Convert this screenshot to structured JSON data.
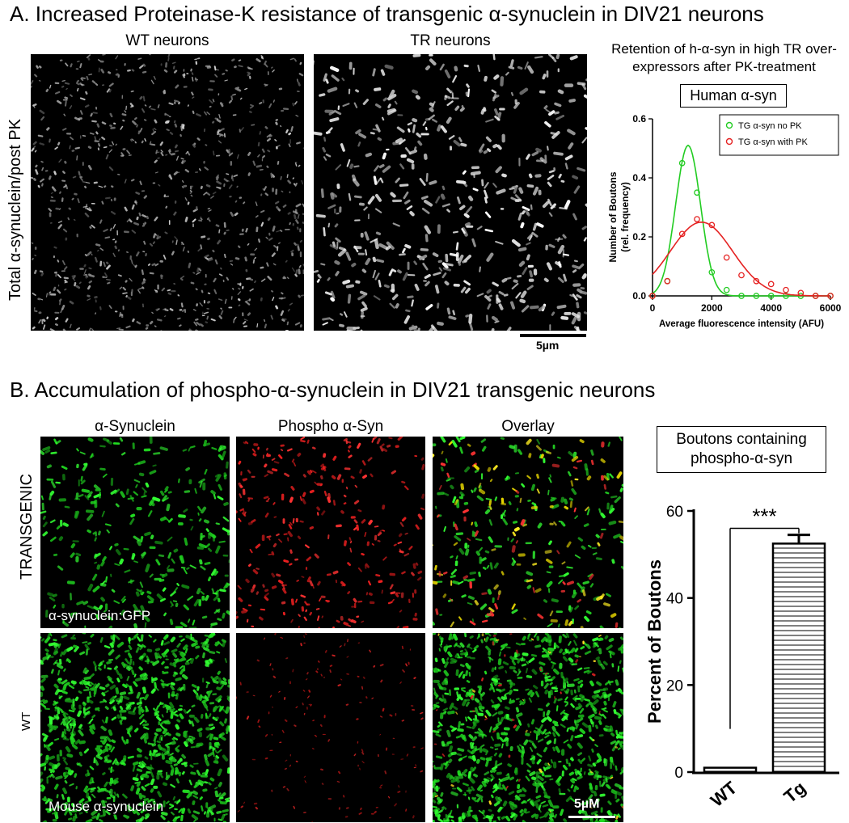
{
  "figure": {
    "section_a": {
      "title": "A. Increased Proteinase-K resistance of transgenic α-synuclein in DIV21 neurons",
      "panel_labels": [
        "WT neurons",
        "TR neurons"
      ],
      "row_label": "Total α-synuclein/post PK",
      "scale_bar": "5µm"
    },
    "section_b": {
      "title": "B. Accumulation of phospho-α-synuclein in DIV21 transgenic neurons",
      "column_labels": [
        "α-Synuclein",
        "Phospho α-Syn",
        "Overlay"
      ],
      "row_labels": [
        "TRANSGENIC",
        "WT"
      ],
      "insets": [
        "α-synuclein:GFP",
        "Mouse α-synuclein"
      ],
      "scale_bar": "5µM"
    }
  },
  "chart_data": [
    {
      "type": "line",
      "title": "Retention of h-α-syn in high TR over-expressors after PK-treatment",
      "subtitle": "Human α-syn",
      "xlabel": "Average fluorescence intensity (AFU)",
      "ylabel": "Number of Boutons (rel. frequency)",
      "xlim": [
        0,
        6000
      ],
      "ylim": [
        0,
        0.6
      ],
      "xticks": [
        0,
        2000,
        4000,
        6000
      ],
      "yticks": [
        0.0,
        0.2,
        0.4,
        0.6
      ],
      "ytick_labels": [
        "0.0",
        "0.2",
        "0.4",
        "0.6"
      ],
      "legend_position": "top-right",
      "series": [
        {
          "name": "TG α-syn no PK",
          "color": "#22cc22",
          "points": [
            [
              0,
              0
            ],
            [
              500,
              0.05
            ],
            [
              1000,
              0.45
            ],
            [
              1500,
              0.35
            ],
            [
              2000,
              0.08
            ],
            [
              2500,
              0.02
            ],
            [
              3000,
              0.0
            ],
            [
              3500,
              0.0
            ],
            [
              4000,
              0.0
            ],
            [
              4500,
              0.0
            ],
            [
              5000,
              0.0
            ],
            [
              5500,
              0.0
            ],
            [
              6000,
              0.0
            ]
          ],
          "fit": {
            "peak_x": 1200,
            "peak_y": 0.51,
            "width": 420
          }
        },
        {
          "name": "TG α-syn with PK",
          "color": "#e52222",
          "points": [
            [
              0,
              0
            ],
            [
              500,
              0.05
            ],
            [
              1000,
              0.21
            ],
            [
              1500,
              0.26
            ],
            [
              2000,
              0.24
            ],
            [
              2500,
              0.13
            ],
            [
              3000,
              0.07
            ],
            [
              3500,
              0.05
            ],
            [
              4000,
              0.04
            ],
            [
              4500,
              0.02
            ],
            [
              5000,
              0.01
            ],
            [
              5500,
              0.0
            ],
            [
              6000,
              0.0
            ]
          ],
          "fit": {
            "peak_x": 1650,
            "peak_y": 0.25,
            "width": 1050
          }
        }
      ]
    },
    {
      "type": "bar",
      "title": "Boutons containing phospho-α-syn",
      "categories": [
        "WT",
        "Tg"
      ],
      "values": [
        1,
        52.5
      ],
      "errors": [
        0,
        2
      ],
      "ylabel": "Percent of Boutons",
      "ylim": [
        0,
        60
      ],
      "yticks": [
        0,
        20,
        40,
        60
      ],
      "significance": "***"
    }
  ]
}
